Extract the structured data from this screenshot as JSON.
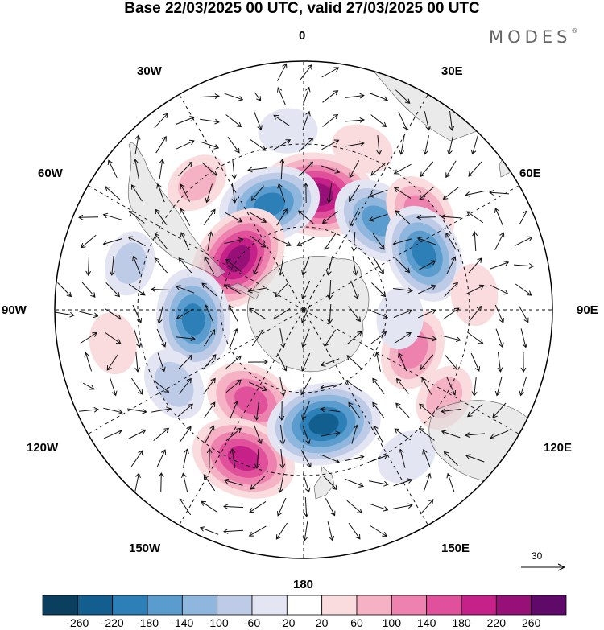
{
  "title": "Base 22/03/2025 00 UTC, valid 27/03/2025 00 UTC",
  "brand": {
    "name": "MODES",
    "mark": "®"
  },
  "longitude_labels": {
    "lon_0": "0",
    "lon_30e": "30E",
    "lon_60e": "60E",
    "lon_90e": "90E",
    "lon_120e": "120E",
    "lon_150e": "150E",
    "lon_180": "180",
    "lon_150w": "150W",
    "lon_120w": "120W",
    "lon_90w": "90W",
    "lon_60w": "60W",
    "lon_30w": "30W"
  },
  "wind_reference": {
    "value": "30"
  },
  "colorbar": {
    "ticks": [
      "-260",
      "-220",
      "-180",
      "-140",
      "-100",
      "-60",
      "-20",
      "20",
      "60",
      "100",
      "140",
      "180",
      "220",
      "260"
    ],
    "colors": [
      "#0b3f60",
      "#125f8f",
      "#2d7fb8",
      "#5a9ccd",
      "#8fb6dc",
      "#bdcbe7",
      "#e4e5f3",
      "#ffffff",
      "#fadcde",
      "#f4b2c4",
      "#ec82ad",
      "#e0509b",
      "#c52189",
      "#961078",
      "#5f0a69"
    ]
  },
  "map": {
    "projection": "south-polar-stereographic",
    "land_color": "#d9d9d9",
    "anomalies": [
      {
        "lon": 7,
        "lat": -48,
        "value": 250
      },
      {
        "lon": -18,
        "lat": -50,
        "value": -200
      },
      {
        "lon": 40,
        "lat": -48,
        "value": -180
      },
      {
        "lon": 50,
        "lat": -35,
        "value": 120
      },
      {
        "lon": 65,
        "lat": -42,
        "value": -190
      },
      {
        "lon": -52,
        "lat": -60,
        "value": 230
      },
      {
        "lon": -95,
        "lat": -50,
        "value": -200
      },
      {
        "lon": -120,
        "lat": -36,
        "value": -100
      },
      {
        "lon": -150,
        "lat": -52,
        "value": 170
      },
      {
        "lon": -158,
        "lat": -32,
        "value": 210
      },
      {
        "lon": 170,
        "lat": -48,
        "value": -240
      },
      {
        "lon": 110,
        "lat": -48,
        "value": 130
      },
      {
        "lon": 122,
        "lat": -30,
        "value": 80
      },
      {
        "lon": -40,
        "lat": -30,
        "value": 70
      },
      {
        "lon": -75,
        "lat": -25,
        "value": -70
      },
      {
        "lon": -100,
        "lat": -20,
        "value": 60
      },
      {
        "lon": 85,
        "lat": -28,
        "value": 60
      },
      {
        "lon": 20,
        "lat": -28,
        "value": 60
      },
      {
        "lon": -5,
        "lat": -25,
        "value": -50
      },
      {
        "lon": 145,
        "lat": -25,
        "value": -60
      },
      {
        "lon": 95,
        "lat": -55,
        "value": -60
      }
    ]
  }
}
